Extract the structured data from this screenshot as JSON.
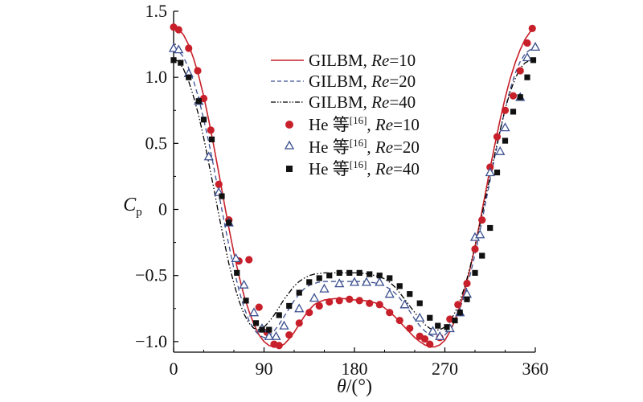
{
  "chart_data": {
    "type": "line",
    "xlabel": "θ/(°)",
    "ylabel": "Cp",
    "ylabel_main": "C",
    "ylabel_sub": "p",
    "xlabel_theta": "θ",
    "xlabel_unit": "/(°)",
    "xlim": [
      0,
      360
    ],
    "ylim": [
      -1.08,
      1.5
    ],
    "xticks": [
      0,
      90,
      180,
      270,
      360
    ],
    "xtick_labels": [
      "0",
      "90",
      "180",
      "270",
      "360"
    ],
    "yticks": [
      -1.0,
      -0.5,
      0,
      0.5,
      1.0,
      1.5
    ],
    "ytick_labels": [
      "−1.0",
      "−0.5",
      "0",
      "0.5",
      "1.0",
      "1.5"
    ],
    "grid": false,
    "legend_placement": "top-center",
    "series": [
      {
        "name": "GILBM, Re=10",
        "legend_prefix": "GILBM, ",
        "legend_re": "Re",
        "legend_value": "=10",
        "style": "solid",
        "color": "#c8202a",
        "x": [
          0,
          5,
          10,
          15,
          20,
          25,
          30,
          35,
          40,
          45,
          50,
          55,
          60,
          65,
          70,
          75,
          80,
          85,
          90,
          95,
          100,
          105,
          110,
          115,
          120,
          125,
          130,
          135,
          140,
          145,
          150,
          155,
          160,
          165,
          170,
          175,
          180,
          185,
          190,
          195,
          200,
          205,
          210,
          215,
          220,
          225,
          230,
          235,
          240,
          245,
          250,
          255,
          260,
          265,
          270,
          275,
          280,
          285,
          290,
          295,
          300,
          305,
          310,
          315,
          320,
          325,
          330,
          335,
          340,
          345,
          350,
          355,
          360
        ],
        "y": [
          1.38,
          1.365,
          1.32,
          1.245,
          1.14,
          1.01,
          0.855,
          0.675,
          0.48,
          0.275,
          0.065,
          -0.14,
          -0.33,
          -0.5,
          -0.65,
          -0.77,
          -0.87,
          -0.95,
          -1.0,
          -1.03,
          -1.04,
          -1.04,
          -1.02,
          -0.98,
          -0.93,
          -0.87,
          -0.81,
          -0.76,
          -0.72,
          -0.7,
          -0.685,
          -0.68,
          -0.675,
          -0.675,
          -0.675,
          -0.68,
          -0.685,
          -0.685,
          -0.69,
          -0.695,
          -0.705,
          -0.72,
          -0.745,
          -0.775,
          -0.81,
          -0.85,
          -0.89,
          -0.93,
          -0.97,
          -1.0,
          -1.025,
          -1.04,
          -1.04,
          -1.025,
          -0.99,
          -0.925,
          -0.84,
          -0.73,
          -0.6,
          -0.45,
          -0.28,
          -0.09,
          0.11,
          0.31,
          0.5,
          0.68,
          0.845,
          0.99,
          1.11,
          1.21,
          1.29,
          1.345,
          1.375
        ]
      },
      {
        "name": "GILBM, Re=20",
        "legend_prefix": "GILBM, ",
        "legend_re": "Re",
        "legend_value": "=20",
        "style": "dashed",
        "color": "#3a4f8f",
        "x": [
          0,
          5,
          10,
          15,
          20,
          25,
          30,
          35,
          40,
          45,
          50,
          55,
          60,
          65,
          70,
          75,
          80,
          85,
          90,
          95,
          100,
          105,
          110,
          115,
          120,
          125,
          130,
          135,
          140,
          145,
          150,
          155,
          160,
          165,
          170,
          175,
          180,
          185,
          190,
          195,
          200,
          205,
          210,
          215,
          220,
          225,
          230,
          235,
          240,
          245,
          250,
          255,
          260,
          265,
          270,
          275,
          280,
          285,
          290,
          295,
          300,
          305,
          310,
          315,
          320,
          325,
          330,
          335,
          340,
          345,
          350,
          355,
          360
        ],
        "y": [
          1.22,
          1.2,
          1.15,
          1.07,
          0.97,
          0.84,
          0.68,
          0.51,
          0.32,
          0.12,
          -0.08,
          -0.27,
          -0.45,
          -0.61,
          -0.74,
          -0.84,
          -0.91,
          -0.95,
          -0.97,
          -0.96,
          -0.92,
          -0.87,
          -0.81,
          -0.75,
          -0.69,
          -0.64,
          -0.6,
          -0.575,
          -0.56,
          -0.55,
          -0.545,
          -0.545,
          -0.545,
          -0.545,
          -0.545,
          -0.545,
          -0.545,
          -0.545,
          -0.545,
          -0.55,
          -0.555,
          -0.565,
          -0.58,
          -0.6,
          -0.63,
          -0.67,
          -0.72,
          -0.77,
          -0.83,
          -0.88,
          -0.92,
          -0.95,
          -0.965,
          -0.96,
          -0.95,
          -0.91,
          -0.84,
          -0.75,
          -0.64,
          -0.5,
          -0.34,
          -0.16,
          0.03,
          0.22,
          0.41,
          0.59,
          0.76,
          0.91,
          1.03,
          1.12,
          1.18,
          1.21,
          1.22
        ]
      },
      {
        "name": "GILBM, Re=40",
        "legend_prefix": "GILBM, ",
        "legend_re": "Re",
        "legend_value": "=40",
        "style": "dashdotdot",
        "color": "#000000",
        "x": [
          0,
          5,
          10,
          15,
          20,
          25,
          30,
          35,
          40,
          45,
          50,
          55,
          60,
          65,
          70,
          75,
          80,
          85,
          90,
          95,
          100,
          105,
          110,
          115,
          120,
          125,
          130,
          135,
          140,
          145,
          150,
          155,
          160,
          165,
          170,
          175,
          180,
          185,
          190,
          195,
          200,
          205,
          210,
          215,
          220,
          225,
          230,
          235,
          240,
          245,
          250,
          255,
          260,
          265,
          270,
          275,
          280,
          285,
          290,
          295,
          300,
          305,
          310,
          315,
          320,
          325,
          330,
          335,
          340,
          345,
          350,
          355,
          360
        ],
        "y": [
          1.14,
          1.12,
          1.06,
          0.97,
          0.85,
          0.71,
          0.54,
          0.35,
          0.16,
          -0.04,
          -0.23,
          -0.41,
          -0.56,
          -0.69,
          -0.79,
          -0.86,
          -0.9,
          -0.91,
          -0.89,
          -0.85,
          -0.8,
          -0.74,
          -0.68,
          -0.63,
          -0.58,
          -0.545,
          -0.52,
          -0.5,
          -0.49,
          -0.485,
          -0.48,
          -0.48,
          -0.48,
          -0.48,
          -0.48,
          -0.48,
          -0.48,
          -0.48,
          -0.485,
          -0.49,
          -0.5,
          -0.51,
          -0.525,
          -0.55,
          -0.585,
          -0.63,
          -0.68,
          -0.73,
          -0.78,
          -0.83,
          -0.87,
          -0.9,
          -0.915,
          -0.91,
          -0.89,
          -0.85,
          -0.78,
          -0.69,
          -0.58,
          -0.44,
          -0.28,
          -0.11,
          0.07,
          0.25,
          0.43,
          0.6,
          0.76,
          0.89,
          0.99,
          1.07,
          1.11,
          1.13,
          1.14
        ]
      },
      {
        "name": "He 等[16], Re=10",
        "legend_prefix": "He 等",
        "legend_ref": "[16]",
        "legend_re": "Re",
        "legend_value": "=10",
        "style": "marker-circle",
        "color": "#c8202a",
        "x": [
          0,
          5,
          15,
          24,
          30,
          37,
          45,
          55,
          65,
          75,
          85,
          93,
          100,
          105,
          115,
          125,
          135,
          145,
          155,
          165,
          175,
          185,
          195,
          205,
          215,
          225,
          235,
          245,
          250,
          255,
          265,
          275,
          283,
          292,
          300,
          307,
          315,
          322,
          330,
          338,
          345,
          352,
          357
        ],
        "y": [
          1.38,
          1.36,
          1.22,
          1.05,
          0.84,
          0.6,
          0.19,
          -0.08,
          -0.39,
          -0.38,
          -0.74,
          -0.93,
          -1.02,
          -1.03,
          -0.95,
          -0.86,
          -0.78,
          -0.73,
          -0.7,
          -0.69,
          -0.68,
          -0.69,
          -0.71,
          -0.72,
          -0.78,
          -0.84,
          -0.9,
          -0.96,
          -0.98,
          -1.02,
          -0.97,
          -0.83,
          -0.72,
          -0.56,
          -0.3,
          -0.08,
          0.32,
          0.55,
          0.75,
          0.86,
          1.05,
          1.26,
          1.37
        ]
      },
      {
        "name": "He 等[16], Re=20",
        "legend_prefix": "He 等",
        "legend_ref": "[16]",
        "legend_re": "Re",
        "legend_value": "=20",
        "style": "marker-triangle",
        "color": "#3a4f8f",
        "x": [
          0,
          5,
          15,
          25,
          35,
          45,
          55,
          62,
          70,
          80,
          88,
          95,
          102,
          110,
          125,
          140,
          150,
          165,
          180,
          192,
          205,
          215,
          230,
          245,
          258,
          265,
          275,
          285,
          292,
          300,
          305,
          315,
          325,
          330,
          345,
          352,
          360
        ],
        "y": [
          1.22,
          1.21,
          1.03,
          0.82,
          0.4,
          0.13,
          -0.1,
          -0.37,
          -0.57,
          -0.78,
          -0.9,
          -0.96,
          -0.96,
          -0.88,
          -0.75,
          -0.67,
          -0.6,
          -0.56,
          -0.55,
          -0.55,
          -0.55,
          -0.64,
          -0.72,
          -0.82,
          -0.92,
          -0.96,
          -0.9,
          -0.78,
          -0.64,
          -0.21,
          -0.19,
          0.28,
          0.44,
          0.62,
          0.85,
          1.15,
          1.23
        ]
      },
      {
        "name": "He 等[16], Re=40",
        "legend_prefix": "He 等",
        "legend_ref": "[16]",
        "legend_re": "Re",
        "legend_value": "=40",
        "style": "marker-square",
        "color": "#111111",
        "x": [
          0,
          7,
          15,
          25,
          30,
          38,
          48,
          55,
          63,
          72,
          82,
          88,
          95,
          105,
          115,
          125,
          135,
          145,
          155,
          165,
          175,
          185,
          195,
          205,
          215,
          225,
          235,
          245,
          255,
          263,
          272,
          280,
          285,
          292,
          300,
          307,
          315,
          322,
          330,
          338,
          345,
          352,
          358
        ],
        "y": [
          1.13,
          1.11,
          1.0,
          0.82,
          0.68,
          0.53,
          0.1,
          -0.1,
          -0.48,
          -0.69,
          -0.86,
          -0.91,
          -0.91,
          -0.8,
          -0.73,
          -0.63,
          -0.55,
          -0.52,
          -0.5,
          -0.48,
          -0.48,
          -0.48,
          -0.49,
          -0.5,
          -0.52,
          -0.58,
          -0.64,
          -0.71,
          -0.82,
          -0.88,
          -0.89,
          -0.84,
          -0.78,
          -0.68,
          -0.48,
          -0.35,
          -0.14,
          0.28,
          0.52,
          0.74,
          0.85,
          1.0,
          1.13
        ]
      }
    ]
  }
}
